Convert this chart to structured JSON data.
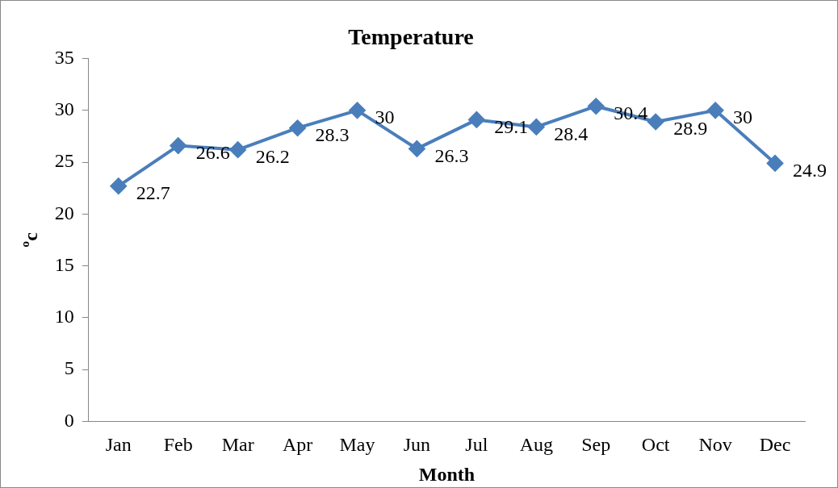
{
  "chart_data": {
    "type": "line",
    "title": "Temperature",
    "xlabel": "Month",
    "ylabel": "ºc",
    "categories": [
      "Jan",
      "Feb",
      "Mar",
      "Apr",
      "May",
      "Jun",
      "Jul",
      "Aug",
      "Sep",
      "Oct",
      "Nov",
      "Dec"
    ],
    "series": [
      {
        "color": "#4a7ebb",
        "values": [
          22.7,
          26.6,
          26.2,
          28.3,
          30,
          26.3,
          29.1,
          28.4,
          30.4,
          28.9,
          30,
          24.9
        ]
      }
    ],
    "ylim": [
      0,
      35
    ],
    "yticks": [
      0,
      5,
      10,
      15,
      20,
      25,
      30,
      35
    ],
    "grid": false,
    "legend": false,
    "marker": "diamond",
    "line_style": "solid",
    "data_labels": true
  }
}
